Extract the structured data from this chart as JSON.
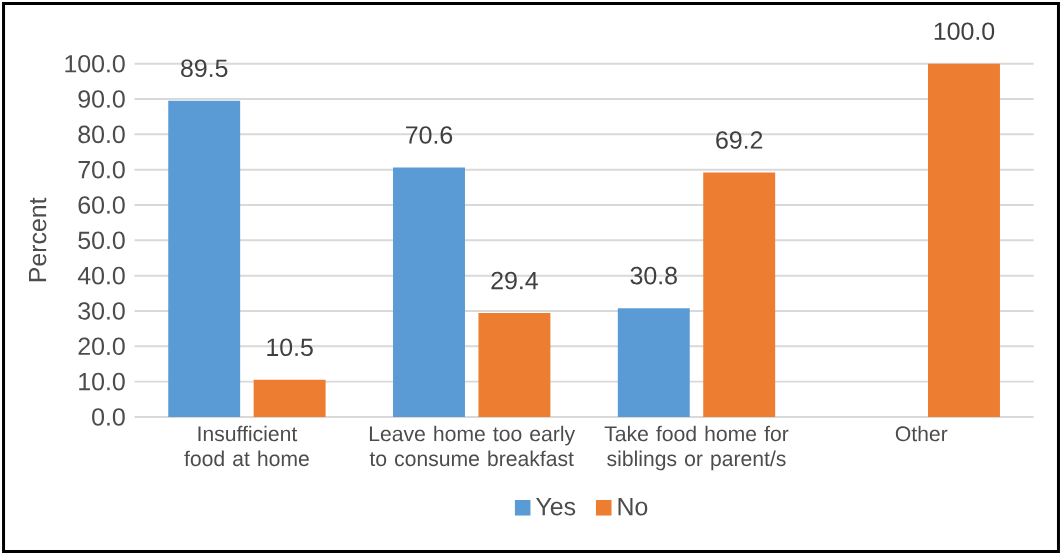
{
  "chart_data": {
    "type": "bar",
    "ylabel": "Percent",
    "categories": [
      "Insufficient food at home",
      "Leave home too early to consume breakfast",
      "Take food home for siblings or parent/s",
      "Other"
    ],
    "series": [
      {
        "name": "Yes",
        "color": "#5b9bd5",
        "values": [
          89.5,
          70.6,
          30.8,
          null
        ],
        "value_labels": [
          "89.5",
          "70.6",
          "30.8",
          null
        ]
      },
      {
        "name": "No",
        "color": "#ed7d31",
        "values": [
          10.5,
          29.4,
          69.2,
          100.0
        ],
        "value_labels": [
          "10.5",
          "29.4",
          "69.2",
          "100.0"
        ]
      }
    ],
    "ylim": [
      0,
      100
    ],
    "yticks": [
      {
        "value": 0,
        "label": "0.0"
      },
      {
        "value": 10,
        "label": "10.0"
      },
      {
        "value": 20,
        "label": "20.0"
      },
      {
        "value": 30,
        "label": "30.0"
      },
      {
        "value": 40,
        "label": "40.0"
      },
      {
        "value": 50,
        "label": "50.0"
      },
      {
        "value": 60,
        "label": "60.0"
      },
      {
        "value": 70,
        "label": "70.0"
      },
      {
        "value": 80,
        "label": "80.0"
      },
      {
        "value": 90,
        "label": "90.0"
      },
      {
        "value": 100,
        "label": "100.0"
      }
    ],
    "grid": "y",
    "legend": "bottom"
  }
}
